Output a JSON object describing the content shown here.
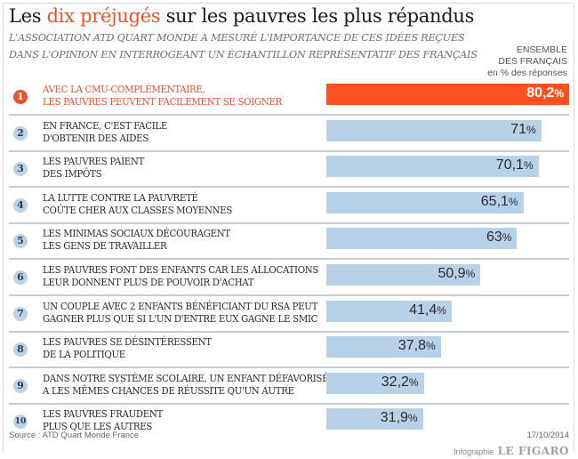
{
  "header": {
    "title_prefix": "Les ",
    "title_highlight": "dix préjugés",
    "title_suffix": " sur les pauvres les plus répandus",
    "subtitle_line1": "L'ASSOCIATION ATD QUART MONDE A MESURÉ L'IMPORTANCE DE CES IDÉES REÇUES",
    "subtitle_line2": "DANS L'OPINION EN INTERROGEANT UN ÉCHANTILLON REPRÉSENTATIF DES FRANÇAIS",
    "legend_line1": "ENSEMBLE",
    "legend_line2": "DES FRANÇAIS",
    "legend_line3": "en % des réponses"
  },
  "colors": {
    "accent": "#fe5122",
    "bar": "#b7d2e8",
    "highlight_text": "#e8532c"
  },
  "chart_data": {
    "type": "bar",
    "orientation": "horizontal",
    "title": "Les dix préjugés sur les pauvres les plus répandus",
    "xlabel": "",
    "ylabel": "",
    "unit": "%",
    "xlim": [
      0,
      80.2
    ],
    "grid": false,
    "legend": "top-right",
    "categories": [
      {
        "rank": "1",
        "line1": "AVEC LA CMU-COMPLÉMENTAIRE,",
        "line2": "LES PAUVRES PEUVENT FACILEMENT SE SOIGNER",
        "value": 80.2,
        "label": "80,2"
      },
      {
        "rank": "2",
        "line1": "EN FRANCE, C'EST FACILE",
        "line2": "D'OBTENIR DES AIDES",
        "value": 71,
        "label": "71"
      },
      {
        "rank": "3",
        "line1": "LES PAUVRES PAIENT",
        "line2": "DES IMPÔTS",
        "value": 70.1,
        "label": "70,1"
      },
      {
        "rank": "4",
        "line1": "LA LUTTE CONTRE LA PAUVRETÉ",
        "line2": "COÛTE CHER AUX CLASSES MOYENNES",
        "value": 65.1,
        "label": "65,1"
      },
      {
        "rank": "5",
        "line1": "LES MINIMAS SOCIAUX DÉCOURAGENT",
        "line2": "LES GENS DE TRAVAILLER",
        "value": 63,
        "label": "63"
      },
      {
        "rank": "6",
        "line1": "LES PAUVRES FONT DES ENFANTS CAR LES ALLOCATIONS",
        "line2": "LEUR DONNENT PLUS DE POUVOIR D'ACHAT",
        "value": 50.9,
        "label": "50,9"
      },
      {
        "rank": "7",
        "line1": "UN COUPLE AVEC 2 ENFANTS BÉNÉFICIANT DU RSA PEUT",
        "line2": "GAGNER PLUS QUE SI L'UN D'ENTRE EUX GAGNE LE SMIC",
        "value": 41.4,
        "label": "41,4"
      },
      {
        "rank": "8",
        "line1": "LES PAUVRES SE DÉSINTÉRESSENT",
        "line2": "DE LA POLITIQUE",
        "value": 37.8,
        "label": "37,8"
      },
      {
        "rank": "9",
        "line1": "DANS NOTRE SYSTÈME SCOLAIRE, UN ENFANT DÉFAVORISÉ",
        "line2": "A LES MÊMES CHANCES DE RÉUSSITE QU'UN AUTRE",
        "value": 32.2,
        "label": "32,2"
      },
      {
        "rank": "10",
        "line1": "LES PAUVRES FRAUDENT",
        "line2": "PLUS QUE LES AUTRES",
        "value": 31.9,
        "label": "31,9"
      }
    ],
    "values": [
      80.2,
      71,
      70.1,
      65.1,
      63,
      50.9,
      41.4,
      37.8,
      32.2,
      31.9
    ],
    "highlighted_index": 0
  },
  "footer": {
    "source": "Source : ATD Quart Monde France",
    "date": "17/10/2014",
    "credit_prefix": "Infographie",
    "credit_brand": "LE FIGARO"
  }
}
